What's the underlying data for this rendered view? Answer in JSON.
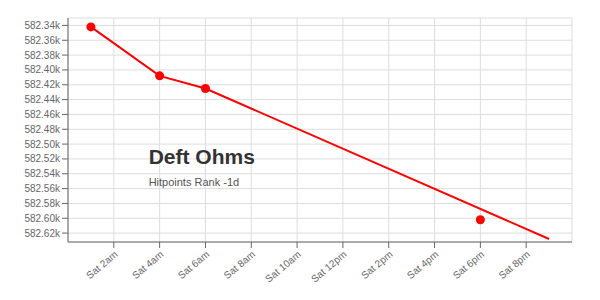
{
  "chart_data": {
    "type": "line",
    "title": "Deft Ohms",
    "subtitle": "Hitpoints Rank -1d",
    "series": [
      {
        "type": "line",
        "color": "#ff0000",
        "x": [
          1,
          4,
          6,
          21
        ],
        "values": [
          582342,
          582408,
          582425,
          582628
        ]
      },
      {
        "type": "scatter",
        "marker": "circle",
        "color": "#ff0000",
        "x": [
          1,
          4,
          6,
          18
        ],
        "values": [
          582342,
          582408,
          582425,
          582602
        ]
      }
    ],
    "xlim": [
      0,
      22
    ],
    "xticks": [
      {
        "value": 2,
        "label": "Sat 2am"
      },
      {
        "value": 4,
        "label": "Sat 4am"
      },
      {
        "value": 6,
        "label": "Sat 6am"
      },
      {
        "value": 8,
        "label": "Sat 8am"
      },
      {
        "value": 10,
        "label": "Sat 10am"
      },
      {
        "value": 12,
        "label": "Sat 12pm"
      },
      {
        "value": 14,
        "label": "Sat 2pm"
      },
      {
        "value": 16,
        "label": "Sat 4pm"
      },
      {
        "value": 18,
        "label": "Sat 6pm"
      },
      {
        "value": 20,
        "label": "Sat 8pm"
      }
    ],
    "ylim": [
      582632,
      582330
    ],
    "yticks": [
      {
        "value": 582340,
        "label": "582.34k"
      },
      {
        "value": 582360,
        "label": "582.36k"
      },
      {
        "value": 582380,
        "label": "582.38k"
      },
      {
        "value": 582400,
        "label": "582.40k"
      },
      {
        "value": 582420,
        "label": "582.42k"
      },
      {
        "value": 582440,
        "label": "582.44k"
      },
      {
        "value": 582460,
        "label": "582.46k"
      },
      {
        "value": 582480,
        "label": "582.48k"
      },
      {
        "value": 582500,
        "label": "582.50k"
      },
      {
        "value": 582520,
        "label": "582.52k"
      },
      {
        "value": 582540,
        "label": "582.54k"
      },
      {
        "value": 582560,
        "label": "582.56k"
      },
      {
        "value": 582580,
        "label": "582.58k"
      },
      {
        "value": 582600,
        "label": "582.60k"
      },
      {
        "value": 582620,
        "label": "582.62k"
      }
    ],
    "grid": true
  }
}
